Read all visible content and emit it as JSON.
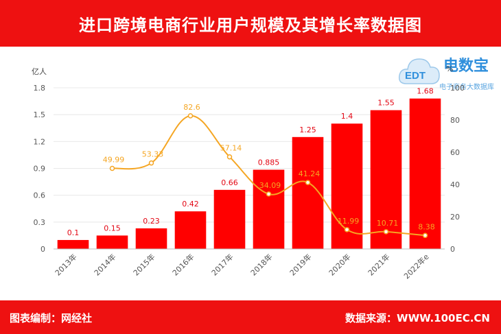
{
  "header": {
    "title": "进口跨境电商行业用户规模及其增长率数据图"
  },
  "footer": {
    "left": "图表编制：网经社",
    "right": "数据来源：WWW.100EC.CN"
  },
  "logo": {
    "badge": "EDT",
    "title": "电数宝",
    "subtitle": "电子商务大数据库"
  },
  "colors": {
    "bar": "#ff0000",
    "line": "#f5a623",
    "header": "#ee1111"
  },
  "chart_data": {
    "type": "bar+line",
    "categories": [
      "2013年",
      "2014年",
      "2015年",
      "2016年",
      "2017年",
      "2018年",
      "2019年",
      "2020年",
      "2021年",
      "2022年e"
    ],
    "series": [
      {
        "name": "用户规模",
        "axis": "left",
        "unit": "亿人",
        "values": [
          0.1,
          0.15,
          0.23,
          0.42,
          0.66,
          0.885,
          1.25,
          1.4,
          1.55,
          1.68
        ],
        "labels": [
          "0.1",
          "0.15",
          "0.23",
          "0.42",
          "0.66",
          "0.885",
          "1.25",
          "1.4",
          "1.55",
          "1.68"
        ]
      },
      {
        "name": "增长率",
        "axis": "right",
        "unit": "%",
        "values": [
          null,
          49.99,
          53.33,
          82.6,
          57.14,
          34.09,
          41.24,
          11.99,
          10.71,
          8.38
        ],
        "labels": [
          "",
          "49.99",
          "53.33",
          "82.6",
          "57.14",
          "34.09",
          "41.24",
          "11.99",
          "10.71",
          "8.38"
        ]
      }
    ],
    "left_axis": {
      "unit": "亿人",
      "range": [
        0,
        1.8
      ],
      "ticks": [
        "0",
        "0.3",
        "0.6",
        "0.9",
        "1.2",
        "1.5",
        "1.8"
      ]
    },
    "right_axis": {
      "unit": "%",
      "range": [
        0,
        100
      ],
      "ticks": [
        "0",
        "20",
        "40",
        "60",
        "80",
        "100"
      ]
    },
    "grid": true
  }
}
